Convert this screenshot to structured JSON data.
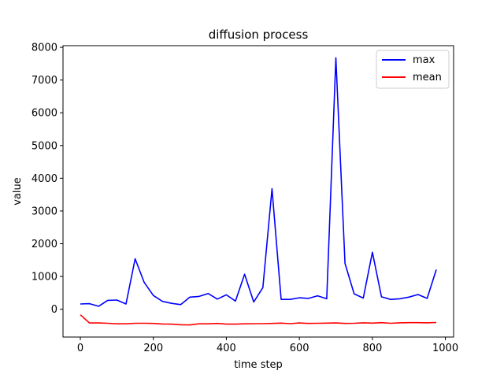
{
  "chart_data": {
    "type": "line",
    "title": "diffusion process",
    "xlabel": "time step",
    "ylabel": "value",
    "xlim": [
      -47.5,
      1022.5
    ],
    "ylim": [
      -850,
      8050
    ],
    "xticks": [
      0,
      200,
      400,
      600,
      800,
      1000
    ],
    "yticks": [
      0,
      1000,
      2000,
      3000,
      4000,
      5000,
      6000,
      7000,
      8000
    ],
    "grid": false,
    "legend_position": "upper right",
    "x": [
      0,
      25,
      50,
      75,
      100,
      125,
      150,
      175,
      200,
      225,
      250,
      275,
      300,
      325,
      350,
      375,
      400,
      425,
      450,
      475,
      500,
      525,
      550,
      575,
      600,
      625,
      650,
      675,
      700,
      725,
      750,
      775,
      800,
      825,
      850,
      875,
      900,
      925,
      950,
      975
    ],
    "series": [
      {
        "name": "max",
        "color": "#0000ff",
        "values": [
          160,
          170,
          90,
          270,
          280,
          160,
          1540,
          820,
          420,
          240,
          180,
          140,
          370,
          390,
          480,
          310,
          440,
          250,
          1070,
          220,
          660,
          3680,
          300,
          300,
          350,
          330,
          410,
          320,
          7680,
          1400,
          470,
          340,
          1740,
          380,
          300,
          320,
          370,
          450,
          330,
          1210
        ]
      },
      {
        "name": "mean",
        "color": "#ff0000",
        "values": [
          -170,
          -420,
          -420,
          -430,
          -445,
          -445,
          -430,
          -430,
          -435,
          -450,
          -455,
          -475,
          -480,
          -445,
          -445,
          -435,
          -455,
          -455,
          -445,
          -440,
          -440,
          -435,
          -425,
          -440,
          -420,
          -435,
          -430,
          -425,
          -420,
          -435,
          -430,
          -415,
          -425,
          -410,
          -430,
          -415,
          -410,
          -410,
          -415,
          -405
        ]
      }
    ]
  }
}
